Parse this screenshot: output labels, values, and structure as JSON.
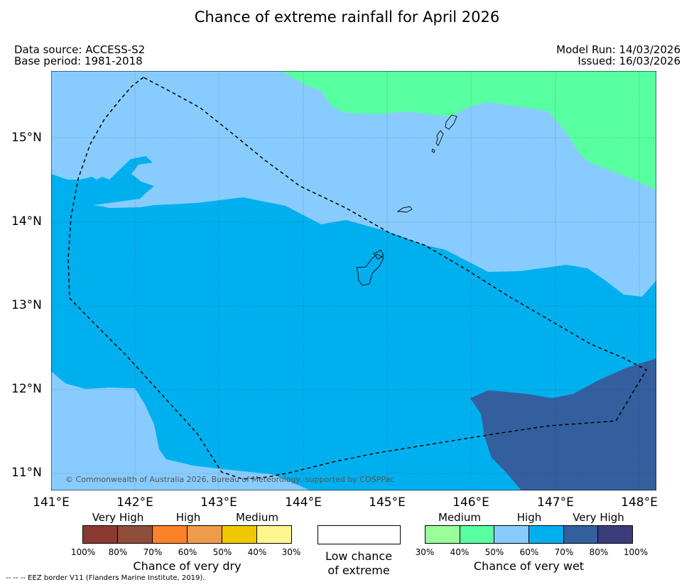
{
  "title": "Chance of extreme rainfall for April 2026",
  "meta": {
    "data_source": "Data source: ACCESS-S2",
    "base_period": "Base period: 1981-2018",
    "model_run": "Model Run: 14/03/2026",
    "issued": "Issued: 16/03/2026"
  },
  "axes": {
    "x_ticks": [
      "141°E",
      "142°E",
      "143°E",
      "144°E",
      "145°E",
      "146°E",
      "147°E",
      "148°E"
    ],
    "y_ticks": [
      "15°N",
      "14°N",
      "13°N",
      "12°N",
      "11°N"
    ],
    "x_range_deg": [
      141.0,
      148.2
    ],
    "y_range_deg": [
      10.8,
      15.8
    ]
  },
  "map": {
    "copyright": "© Commonwealth of Australia 2026, Bureau of Meteorology, supported by COSPPac",
    "zone_colors": {
      "wet_40_50": "#57ffa0",
      "wet_50_60": "#88ccff",
      "wet_60_70": "#00b0ee",
      "wet_70_80": "#335f9e"
    }
  },
  "legend": {
    "dry": {
      "labels": [
        "Very High",
        "High",
        "Medium"
      ],
      "colors": [
        "#8b3a31",
        "#8f4e3a",
        "#fd8127",
        "#ee9b4b",
        "#f0c800",
        "#fff68f"
      ],
      "percentages": [
        "100%",
        "80%",
        "70%",
        "60%",
        "50%",
        "40%",
        "30%"
      ],
      "caption": "Chance of very dry"
    },
    "low": {
      "line1": "Low chance",
      "line2": "of extreme"
    },
    "wet": {
      "labels": [
        "Medium",
        "High",
        "Very High"
      ],
      "colors": [
        "#99ff99",
        "#57ffa0",
        "#88ccff",
        "#00b0ee",
        "#335f9e",
        "#3b3c7b"
      ],
      "percentages": [
        "30%",
        "40%",
        "50%",
        "60%",
        "70%",
        "80%",
        "100%"
      ],
      "caption": "Chance of very wet"
    }
  },
  "footer": {
    "eez_note": "--  --  -- EEZ border V11 (Flanders Marine Institute, 2019)."
  }
}
